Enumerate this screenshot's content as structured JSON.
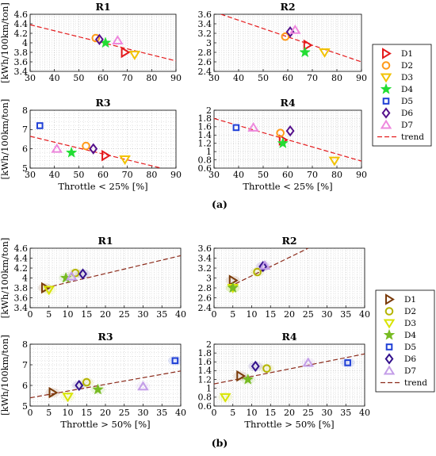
{
  "figure_labels": {
    "a": "(a)",
    "b": "(b)"
  },
  "colors": {
    "a": {
      "D1": "#e41a1c",
      "D2": "#ff9a1a",
      "D3": "#f2c200",
      "D4": "#22dd33",
      "D5": "#1f3fd6",
      "D6": "#55118c",
      "D7": "#ee88dd",
      "trend": "#e41a1c"
    },
    "b": {
      "D1": "#7a3b0a",
      "D2": "#b4b400",
      "D3": "#d8e400",
      "D4": "#77bb22",
      "D5": "#1f3fd6",
      "D6": "#33118c",
      "D7": "#c39de8",
      "trend": "#8b2a1a"
    }
  },
  "legends": [
    {
      "group": "a",
      "items": [
        {
          "label": "D1",
          "marker": "tri-right"
        },
        {
          "label": "D2",
          "marker": "circle"
        },
        {
          "label": "D3",
          "marker": "tri-down"
        },
        {
          "label": "D4",
          "marker": "star"
        },
        {
          "label": "D5",
          "marker": "square"
        },
        {
          "label": "D6",
          "marker": "diamond"
        },
        {
          "label": "D7",
          "marker": "tri-up"
        },
        {
          "label": "trend",
          "marker": "line"
        }
      ]
    },
    {
      "group": "b",
      "items": [
        {
          "label": "D1",
          "marker": "tri-right"
        },
        {
          "label": "D2",
          "marker": "circle"
        },
        {
          "label": "D3",
          "marker": "tri-down"
        },
        {
          "label": "D4",
          "marker": "star"
        },
        {
          "label": "D5",
          "marker": "square"
        },
        {
          "label": "D6",
          "marker": "diamond"
        },
        {
          "label": "D7",
          "marker": "tri-up"
        },
        {
          "label": "trend",
          "marker": "line"
        }
      ]
    }
  ],
  "chart_data": [
    {
      "type": "scatter",
      "group": "a",
      "title": "R1",
      "xlabel": "",
      "ylabel": "[kWh/100km/ton]",
      "xlim": [
        30,
        90
      ],
      "ylim": [
        3.4,
        4.6
      ],
      "grid": true,
      "xticks": [
        30,
        40,
        50,
        60,
        70,
        80,
        90
      ],
      "yticks": [
        3.4,
        3.6,
        3.8,
        4,
        4.2,
        4.4,
        4.6
      ],
      "points": [
        {
          "name": "D1",
          "x": 69,
          "y": 3.8
        },
        {
          "name": "D2",
          "x": 57,
          "y": 4.1
        },
        {
          "name": "D3",
          "x": 73,
          "y": 3.75
        },
        {
          "name": "D4",
          "x": 61,
          "y": 4.0
        },
        {
          "name": "D6",
          "x": 58.5,
          "y": 4.07
        },
        {
          "name": "D7",
          "x": 66,
          "y": 4.05
        }
      ],
      "trend": [
        [
          30,
          4.38
        ],
        [
          90,
          3.62
        ]
      ]
    },
    {
      "type": "scatter",
      "group": "a",
      "title": "R2",
      "xlabel": "",
      "ylabel": "",
      "xlim": [
        30,
        90
      ],
      "ylim": [
        2.4,
        3.6
      ],
      "grid": true,
      "xticks": [
        30,
        40,
        50,
        60,
        70,
        80,
        90
      ],
      "yticks": [
        2.4,
        2.6,
        2.8,
        3,
        3.2,
        3.4,
        3.6
      ],
      "points": [
        {
          "name": "D1",
          "x": 68,
          "y": 2.95
        },
        {
          "name": "D2",
          "x": 59,
          "y": 3.13
        },
        {
          "name": "D3",
          "x": 75,
          "y": 2.8
        },
        {
          "name": "D4",
          "x": 67,
          "y": 2.8
        },
        {
          "name": "D6",
          "x": 61,
          "y": 3.23
        },
        {
          "name": "D7",
          "x": 63,
          "y": 3.27
        }
      ],
      "trend": [
        [
          30,
          3.65
        ],
        [
          90,
          2.6
        ]
      ]
    },
    {
      "type": "scatter",
      "group": "a",
      "title": "R3",
      "xlabel": "Throttle < 25% [%]",
      "ylabel": "[kWh/100km/ton]",
      "xlim": [
        30,
        90
      ],
      "ylim": [
        5,
        8
      ],
      "grid": true,
      "xticks": [
        30,
        40,
        50,
        60,
        70,
        80,
        90
      ],
      "yticks": [
        5,
        6,
        7,
        8
      ],
      "points": [
        {
          "name": "D1",
          "x": 61,
          "y": 5.65
        },
        {
          "name": "D2",
          "x": 53,
          "y": 6.15
        },
        {
          "name": "D3",
          "x": 69,
          "y": 5.45
        },
        {
          "name": "D4",
          "x": 47,
          "y": 5.8
        },
        {
          "name": "D5",
          "x": 34,
          "y": 7.2
        },
        {
          "name": "D6",
          "x": 56,
          "y": 6.0
        },
        {
          "name": "D7",
          "x": 41,
          "y": 6.0
        }
      ],
      "trend": [
        [
          30,
          6.65
        ],
        [
          84,
          5.0
        ]
      ]
    },
    {
      "type": "scatter",
      "group": "a",
      "title": "R4",
      "xlabel": "Throttle < 25% [%]",
      "ylabel": "",
      "xlim": [
        30,
        90
      ],
      "ylim": [
        0.6,
        2
      ],
      "grid": true,
      "xticks": [
        30,
        40,
        50,
        60,
        70,
        80,
        90
      ],
      "yticks": [
        0.6,
        0.8,
        1,
        1.2,
        1.4,
        1.6,
        1.8,
        2
      ],
      "points": [
        {
          "name": "D1",
          "x": 58,
          "y": 1.28
        },
        {
          "name": "D2",
          "x": 57,
          "y": 1.45
        },
        {
          "name": "D3",
          "x": 79,
          "y": 0.78
        },
        {
          "name": "D4",
          "x": 58,
          "y": 1.2
        },
        {
          "name": "D5",
          "x": 39,
          "y": 1.58
        },
        {
          "name": "D6",
          "x": 61,
          "y": 1.5
        },
        {
          "name": "D7",
          "x": 46,
          "y": 1.58
        }
      ],
      "trend": [
        [
          30,
          1.8
        ],
        [
          90,
          0.77
        ]
      ]
    },
    {
      "type": "scatter",
      "group": "b",
      "title": "R1",
      "xlabel": "",
      "ylabel": "[kWh/100km/ton]",
      "xlim": [
        0,
        40
      ],
      "ylim": [
        3.4,
        4.6
      ],
      "grid": true,
      "xticks": [
        0,
        5,
        10,
        15,
        20,
        25,
        30,
        35,
        40
      ],
      "yticks": [
        3.4,
        3.6,
        3.8,
        4,
        4.2,
        4.4,
        4.6
      ],
      "points": [
        {
          "name": "D1",
          "x": 4,
          "y": 3.8
        },
        {
          "name": "D2",
          "x": 12,
          "y": 4.1
        },
        {
          "name": "D3",
          "x": 5,
          "y": 3.76
        },
        {
          "name": "D4",
          "x": 9.5,
          "y": 4.0
        },
        {
          "name": "D6",
          "x": 14,
          "y": 4.08
        },
        {
          "name": "D7",
          "x": 11,
          "y": 4.03
        }
      ],
      "trend": [
        [
          4,
          3.8
        ],
        [
          40,
          4.45
        ]
      ]
    },
    {
      "type": "scatter",
      "group": "b",
      "title": "R2",
      "xlabel": "",
      "ylabel": "",
      "xlim": [
        0,
        40
      ],
      "ylim": [
        2.4,
        3.6
      ],
      "grid": true,
      "xticks": [
        0,
        5,
        10,
        15,
        20,
        25,
        30,
        35,
        40
      ],
      "yticks": [
        2.4,
        2.6,
        2.8,
        3,
        3.2,
        3.4,
        3.6
      ],
      "points": [
        {
          "name": "D1",
          "x": 5,
          "y": 2.95
        },
        {
          "name": "D2",
          "x": 11.5,
          "y": 3.12
        },
        {
          "name": "D3",
          "x": 5,
          "y": 2.8
        },
        {
          "name": "D4",
          "x": 5,
          "y": 2.8
        },
        {
          "name": "D6",
          "x": 13,
          "y": 3.23
        },
        {
          "name": "D7",
          "x": 13.5,
          "y": 3.25
        }
      ],
      "trend": [
        [
          4,
          2.82
        ],
        [
          25,
          3.6
        ]
      ]
    },
    {
      "type": "scatter",
      "group": "b",
      "title": "R3",
      "xlabel": "Throttle > 50% [%]",
      "ylabel": "[kWh/100km/ton]",
      "xlim": [
        0,
        40
      ],
      "ylim": [
        5,
        8
      ],
      "grid": true,
      "xticks": [
        0,
        5,
        10,
        15,
        20,
        25,
        30,
        35,
        40
      ],
      "yticks": [
        5,
        6,
        7,
        8
      ],
      "points": [
        {
          "name": "D1",
          "x": 6,
          "y": 5.65
        },
        {
          "name": "D2",
          "x": 15,
          "y": 6.15
        },
        {
          "name": "D3",
          "x": 10,
          "y": 5.45
        },
        {
          "name": "D4",
          "x": 18,
          "y": 5.8
        },
        {
          "name": "D5",
          "x": 38.5,
          "y": 7.2
        },
        {
          "name": "D6",
          "x": 13,
          "y": 6.0
        },
        {
          "name": "D7",
          "x": 30,
          "y": 5.95
        }
      ],
      "trend": [
        [
          0,
          5.4
        ],
        [
          40,
          6.7
        ]
      ]
    },
    {
      "type": "scatter",
      "group": "b",
      "title": "R4",
      "xlabel": "Throttle > 50% [%]",
      "ylabel": "",
      "xlim": [
        0,
        40
      ],
      "ylim": [
        0.6,
        2
      ],
      "grid": true,
      "xticks": [
        0,
        5,
        10,
        15,
        20,
        25,
        30,
        35,
        40
      ],
      "yticks": [
        0.6,
        0.8,
        1,
        1.2,
        1.4,
        1.6,
        1.8,
        2
      ],
      "points": [
        {
          "name": "D1",
          "x": 7,
          "y": 1.28
        },
        {
          "name": "D2",
          "x": 14,
          "y": 1.45
        },
        {
          "name": "D3",
          "x": 3,
          "y": 0.8
        },
        {
          "name": "D4",
          "x": 9,
          "y": 1.2
        },
        {
          "name": "D5",
          "x": 35.5,
          "y": 1.58
        },
        {
          "name": "D6",
          "x": 11,
          "y": 1.5
        },
        {
          "name": "D7",
          "x": 25,
          "y": 1.58
        }
      ],
      "trend": [
        [
          0,
          1.1
        ],
        [
          40,
          1.78
        ]
      ]
    }
  ]
}
